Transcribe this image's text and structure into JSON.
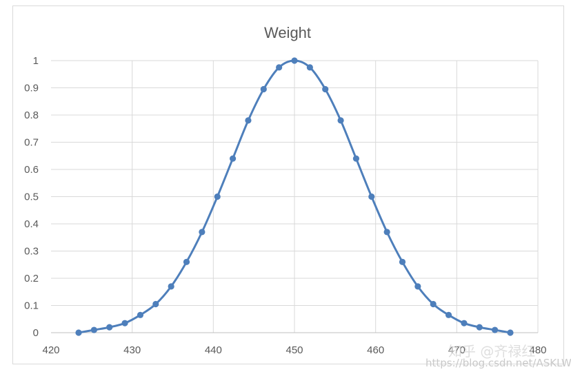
{
  "chart_data": {
    "type": "scatter",
    "title": "Weight",
    "xlabel": "",
    "ylabel": "",
    "xlim": [
      420,
      480
    ],
    "ylim": [
      0,
      1
    ],
    "xticks": [
      420,
      430,
      440,
      450,
      460,
      470,
      480
    ],
    "yticks": [
      0,
      0.1,
      0.2,
      0.3,
      0.4,
      0.5,
      0.6,
      0.7,
      0.8,
      0.9,
      1
    ],
    "ytick_labels": [
      "0",
      "0.1",
      "0.2",
      "0.3",
      "0.4",
      "0.5",
      "0.6",
      "0.7",
      "0.8",
      "0.9",
      "1"
    ],
    "grid": true,
    "legend": "none",
    "line_style": "smoothed line with markers",
    "color": "#4e7fbb",
    "series": [
      {
        "x": [
          423.4,
          425.3,
          427.2,
          429.1,
          431.0,
          432.9,
          434.8,
          436.7,
          438.6,
          440.5,
          442.4,
          444.3,
          446.2,
          448.1,
          450.0,
          451.9,
          453.8,
          455.7,
          457.6,
          459.5,
          461.4,
          463.3,
          465.2,
          467.1,
          469.0,
          470.9,
          472.8,
          474.7,
          476.6
        ],
        "y": [
          0.0,
          0.01,
          0.02,
          0.035,
          0.065,
          0.105,
          0.17,
          0.26,
          0.37,
          0.5,
          0.64,
          0.78,
          0.895,
          0.975,
          1.0,
          0.975,
          0.895,
          0.78,
          0.64,
          0.5,
          0.37,
          0.26,
          0.17,
          0.105,
          0.065,
          0.035,
          0.02,
          0.01,
          0.0
        ]
      }
    ]
  },
  "watermark": {
    "brand": "知乎 @齐禄红",
    "url": "https://blog.csdn.net/ASKLW"
  }
}
